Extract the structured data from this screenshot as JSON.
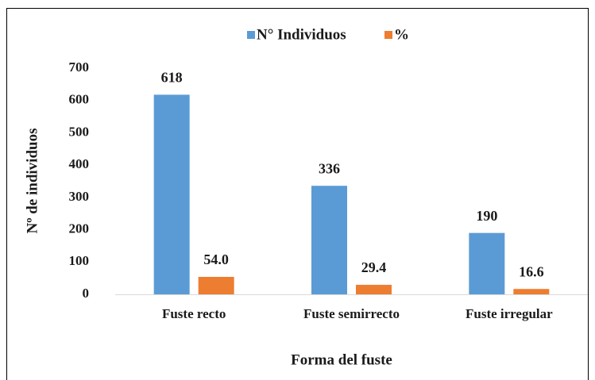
{
  "chart_data": {
    "type": "bar",
    "categories": [
      "Fuste recto",
      "Fuste semirrecto",
      "Fuste irregular"
    ],
    "series": [
      {
        "name": "N° Individuos",
        "color": "#5b9bd5",
        "values": [
          618,
          336,
          190
        ]
      },
      {
        "name": "%",
        "color": "#ed7d31",
        "values": [
          54.0,
          29.4,
          16.6
        ],
        "value_labels": [
          "54.0",
          "29.4",
          "16.6"
        ]
      }
    ],
    "ylabel": "Nº de individuos",
    "xlabel": "Forma del fuste",
    "ylim": [
      0,
      700
    ],
    "yticks": [
      0,
      100,
      200,
      300,
      400,
      500,
      600,
      700
    ],
    "grid": false,
    "legend": "top"
  }
}
